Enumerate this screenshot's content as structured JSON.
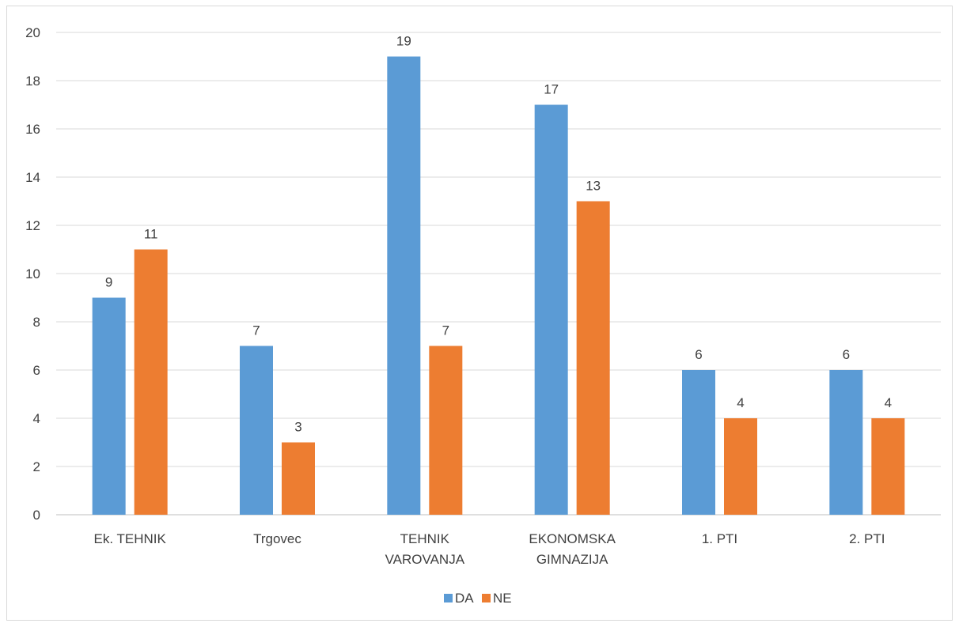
{
  "chart_data": {
    "type": "bar",
    "categories": [
      [
        "Ek. TEHNIK"
      ],
      [
        "Trgovec"
      ],
      [
        "TEHNIK",
        "VAROVANJA"
      ],
      [
        "EKONOMSKA",
        "GIMNAZIJA"
      ],
      [
        "1. PTI"
      ],
      [
        "2. PTI"
      ]
    ],
    "series": [
      {
        "name": "DA",
        "color": "#5b9bd5",
        "values": [
          9,
          7,
          19,
          17,
          6,
          6
        ]
      },
      {
        "name": "NE",
        "color": "#ed7d31",
        "values": [
          11,
          3,
          7,
          13,
          4,
          4
        ]
      }
    ],
    "ylim": [
      0,
      20
    ],
    "y_ticks": [
      0,
      2,
      4,
      6,
      8,
      10,
      12,
      14,
      16,
      18,
      20
    ],
    "grid": true,
    "legend_position": "bottom",
    "data_labels": true,
    "gridline_color": "#d9d9d9",
    "axis_color": "#bfbfbf"
  }
}
